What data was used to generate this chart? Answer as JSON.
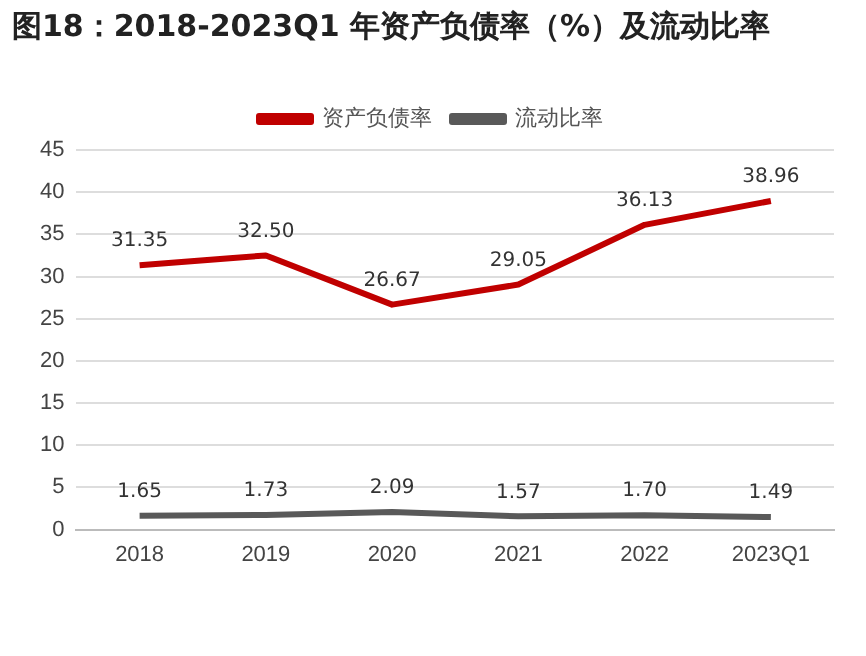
{
  "chart_data": {
    "type": "line",
    "title": "图18：2018-2023Q1 年资产负债率（%）及流动比率",
    "categories": [
      "2018",
      "2019",
      "2020",
      "2021",
      "2022",
      "2023Q1"
    ],
    "series": [
      {
        "name": "资产负债率",
        "color": "#c00000",
        "values": [
          31.35,
          32.5,
          26.67,
          29.05,
          36.13,
          38.96
        ],
        "value_labels": [
          "31.35",
          "32.50",
          "26.67",
          "29.05",
          "36.13",
          "38.96"
        ]
      },
      {
        "name": "流动比率",
        "color": "#595959",
        "values": [
          1.65,
          1.73,
          2.09,
          1.57,
          1.7,
          1.49
        ],
        "value_labels": [
          "1.65",
          "1.73",
          "2.09",
          "1.57",
          "1.70",
          "1.49"
        ]
      }
    ],
    "ylim": [
      0,
      45
    ],
    "yticks": [
      0,
      5,
      10,
      15,
      20,
      25,
      30,
      35,
      40,
      45
    ],
    "grid": "y",
    "legend": "top",
    "marker": "none",
    "line_style": "solid"
  }
}
